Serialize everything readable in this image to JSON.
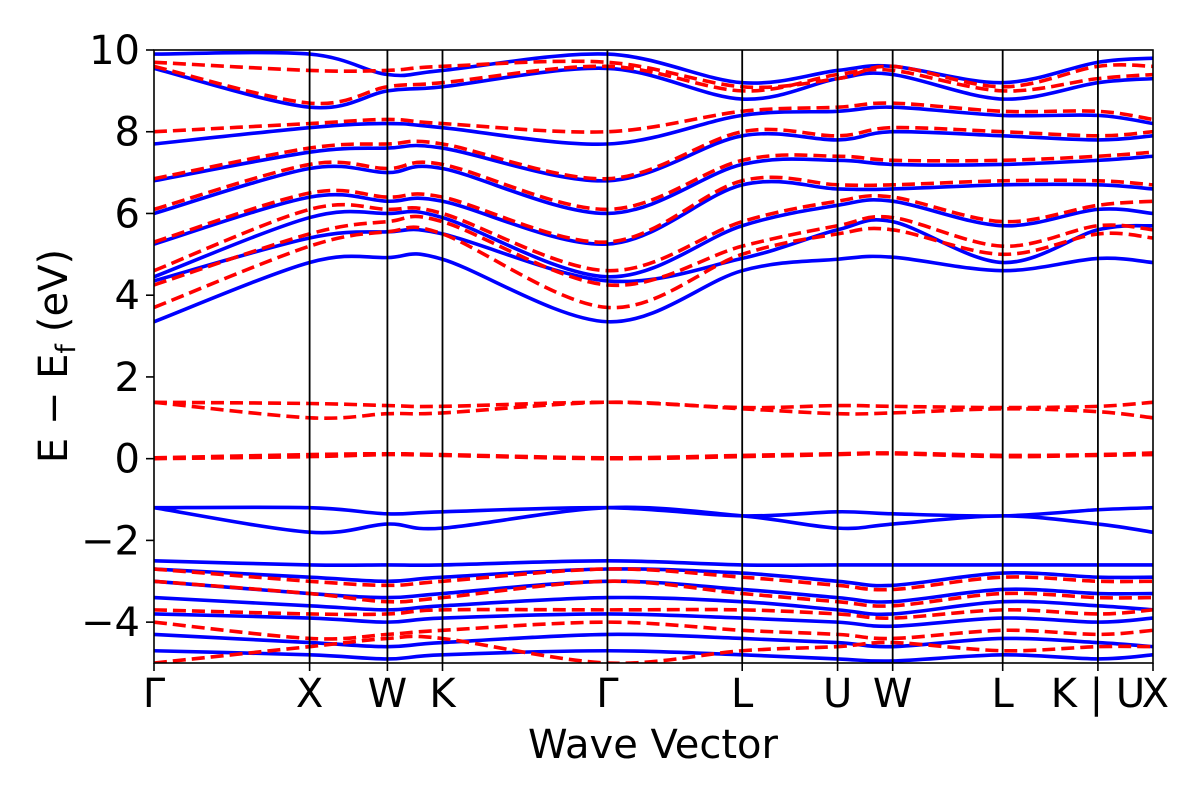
{
  "chart_data": {
    "type": "line",
    "title": "",
    "xlabel": "Wave Vector",
    "ylabel_main": "E − E",
    "ylabel_sub": "f",
    "ylabel_unit": "(eV)",
    "ylim": [
      -5,
      10
    ],
    "yticks": [
      -4,
      -2,
      0,
      2,
      4,
      6,
      8,
      10
    ],
    "ytick_labels": [
      "−4",
      "−2",
      "0",
      "2",
      "4",
      "6",
      "8",
      "10"
    ],
    "kpath": [
      {
        "label": "Γ",
        "x": 0.0
      },
      {
        "label": "X",
        "x": 1.0
      },
      {
        "label": "W",
        "x": 1.5
      },
      {
        "label": "K",
        "x": 1.854
      },
      {
        "label": "Γ",
        "x": 2.914
      },
      {
        "label": "L",
        "x": 3.78
      },
      {
        "label": "U",
        "x": 4.393
      },
      {
        "label": "W",
        "x": 4.747
      },
      {
        "label": "L",
        "x": 5.454
      },
      {
        "label": "K | U",
        "x": 6.066
      },
      {
        "label": "X",
        "x": 6.42
      }
    ],
    "series": [
      {
        "color": "#0000ff",
        "dash": "solid",
        "bands": [
          [
            3.35,
            4.8,
            4.92,
            4.88,
            3.35,
            4.6,
            4.88,
            4.93,
            4.6,
            4.9,
            4.8
          ],
          [
            4.35,
            5.4,
            5.55,
            5.5,
            4.35,
            4.9,
            5.6,
            5.8,
            4.8,
            5.6,
            5.7
          ],
          [
            4.45,
            5.9,
            6.0,
            5.9,
            4.45,
            5.7,
            6.2,
            6.3,
            5.7,
            6.1,
            6.0
          ],
          [
            5.25,
            6.4,
            6.3,
            6.3,
            5.25,
            6.7,
            6.6,
            6.6,
            6.7,
            6.7,
            6.6
          ],
          [
            6.0,
            7.1,
            7.0,
            7.1,
            6.0,
            7.2,
            7.3,
            7.2,
            7.2,
            7.3,
            7.4
          ],
          [
            6.8,
            7.5,
            7.6,
            7.6,
            6.8,
            7.9,
            7.8,
            8.0,
            7.9,
            7.8,
            7.9
          ],
          [
            7.7,
            8.1,
            8.2,
            8.1,
            7.7,
            8.4,
            8.5,
            8.6,
            8.4,
            8.4,
            8.2
          ],
          [
            9.55,
            8.6,
            9.0,
            9.1,
            9.55,
            8.8,
            9.3,
            9.4,
            8.8,
            9.2,
            9.3
          ],
          [
            9.9,
            9.9,
            9.4,
            9.5,
            9.9,
            9.2,
            9.5,
            9.6,
            9.2,
            9.7,
            9.8
          ],
          [
            -1.2,
            -1.8,
            -1.6,
            -1.7,
            -1.2,
            -1.4,
            -1.7,
            -1.6,
            -1.4,
            -1.6,
            -1.8
          ],
          [
            -1.2,
            -1.2,
            -1.35,
            -1.3,
            -1.2,
            -1.4,
            -1.3,
            -1.35,
            -1.4,
            -1.25,
            -1.2
          ],
          [
            -2.5,
            -2.6,
            -2.6,
            -2.6,
            -2.5,
            -2.6,
            -2.6,
            -2.6,
            -2.6,
            -2.6,
            -2.6
          ],
          [
            -2.7,
            -2.9,
            -3.0,
            -2.9,
            -2.7,
            -2.8,
            -3.0,
            -3.1,
            -2.8,
            -2.9,
            -2.9
          ],
          [
            -3.0,
            -3.3,
            -3.4,
            -3.3,
            -3.0,
            -3.2,
            -3.4,
            -3.5,
            -3.2,
            -3.3,
            -3.3
          ],
          [
            -3.4,
            -3.6,
            -3.7,
            -3.6,
            -3.4,
            -3.5,
            -3.7,
            -3.8,
            -3.5,
            -3.6,
            -3.7
          ],
          [
            -3.8,
            -3.9,
            -4.0,
            -3.9,
            -3.8,
            -3.9,
            -4.0,
            -4.1,
            -3.9,
            -4.0,
            -3.9
          ],
          [
            -4.3,
            -4.5,
            -4.6,
            -4.5,
            -4.3,
            -4.4,
            -4.5,
            -4.6,
            -4.4,
            -4.5,
            -4.6
          ],
          [
            -4.7,
            -4.8,
            -4.9,
            -4.8,
            -4.7,
            -4.8,
            -4.9,
            -4.95,
            -4.8,
            -4.9,
            -4.8
          ]
        ]
      },
      {
        "color": "#ff0000",
        "dash": "dashed",
        "bands": [
          [
            3.7,
            5.2,
            5.55,
            5.5,
            3.7,
            5.0,
            5.5,
            5.6,
            5.0,
            5.5,
            5.4
          ],
          [
            4.25,
            5.5,
            5.8,
            5.8,
            4.25,
            5.2,
            5.7,
            5.9,
            5.2,
            5.7,
            5.6
          ],
          [
            4.6,
            6.1,
            6.1,
            6.0,
            4.6,
            5.8,
            6.3,
            6.4,
            5.8,
            6.2,
            6.3
          ],
          [
            5.3,
            6.5,
            6.4,
            6.4,
            5.3,
            6.8,
            6.7,
            6.7,
            6.8,
            6.8,
            6.7
          ],
          [
            6.1,
            7.2,
            7.1,
            7.2,
            6.1,
            7.3,
            7.4,
            7.3,
            7.3,
            7.4,
            7.5
          ],
          [
            6.85,
            7.6,
            7.7,
            7.7,
            6.85,
            8.0,
            7.9,
            8.1,
            8.0,
            7.9,
            8.0
          ],
          [
            8.0,
            8.2,
            8.3,
            8.2,
            8.0,
            8.5,
            8.6,
            8.7,
            8.5,
            8.5,
            8.3
          ],
          [
            9.6,
            8.7,
            9.1,
            9.2,
            9.6,
            9.0,
            9.4,
            9.5,
            9.0,
            9.3,
            9.4
          ],
          [
            9.7,
            9.5,
            9.5,
            9.6,
            9.7,
            9.1,
            9.3,
            9.6,
            9.1,
            9.6,
            9.6
          ],
          [
            1.38,
            1.35,
            1.3,
            1.28,
            1.38,
            1.25,
            1.3,
            1.28,
            1.25,
            1.28,
            1.38
          ],
          [
            1.38,
            1.0,
            1.1,
            1.12,
            1.38,
            1.22,
            1.1,
            1.12,
            1.22,
            1.15,
            1.0
          ],
          [
            0.0,
            0.05,
            0.1,
            0.08,
            0.0,
            0.05,
            0.1,
            0.12,
            0.05,
            0.08,
            0.1
          ],
          [
            0.02,
            0.1,
            0.12,
            0.1,
            0.02,
            0.08,
            0.12,
            0.14,
            0.08,
            0.1,
            0.14
          ],
          [
            -2.7,
            -3.0,
            -3.1,
            -3.0,
            -2.7,
            -2.9,
            -3.1,
            -3.2,
            -2.9,
            -3.0,
            -3.0
          ],
          [
            -3.0,
            -3.3,
            -3.5,
            -3.4,
            -3.0,
            -3.3,
            -3.5,
            -3.6,
            -3.3,
            -3.4,
            -3.4
          ],
          [
            -3.7,
            -3.8,
            -3.8,
            -3.7,
            -3.7,
            -3.7,
            -3.8,
            -3.9,
            -3.7,
            -3.8,
            -3.7
          ],
          [
            -4.0,
            -4.4,
            -4.3,
            -4.2,
            -4.0,
            -4.2,
            -4.3,
            -4.4,
            -4.2,
            -4.3,
            -4.2
          ],
          [
            -5.0,
            -4.6,
            -4.4,
            -4.4,
            -5.0,
            -4.7,
            -4.6,
            -4.5,
            -4.7,
            -4.6,
            -4.6
          ]
        ]
      }
    ]
  }
}
